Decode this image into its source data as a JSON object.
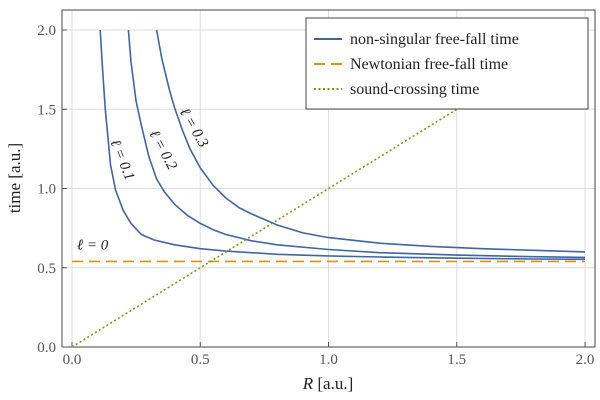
{
  "chart_data": {
    "type": "line",
    "xlabel": "R [a.u.]",
    "xlabel_var": "R",
    "xlabel_unit": " [a.u.]",
    "ylabel": "time [a.u.]",
    "xlim": [
      0.0,
      2.0
    ],
    "ylim": [
      0.0,
      2.0
    ],
    "x_ticks": [
      0.0,
      0.5,
      1.0,
      1.5,
      2.0
    ],
    "x_tick_labels": [
      "0.0",
      "0.5",
      "1.0",
      "1.5",
      "2.0"
    ],
    "y_ticks": [
      0.0,
      0.5,
      1.0,
      1.5,
      2.0
    ],
    "y_tick_labels": [
      "0.0",
      "0.5",
      "1.0",
      "1.5",
      "2.0"
    ],
    "grid": true,
    "legend_position": "top-right",
    "legend": [
      {
        "label": "non-singular free-fall time",
        "style": "solid",
        "color": "#3b67a8"
      },
      {
        "label": "Newtonian free-fall time",
        "style": "dashed",
        "color": "#e0900a"
      },
      {
        "label": "sound-crossing time",
        "style": "dotted",
        "color": "#7a9a12"
      }
    ],
    "series": [
      {
        "label": "ℓ = 0.1",
        "style": "solid",
        "color": "#3b67a8",
        "x": [
          0.11,
          0.12,
          0.13,
          0.15,
          0.17,
          0.2,
          0.23,
          0.27,
          0.32,
          0.4,
          0.5,
          0.6,
          0.8,
          1.0,
          1.2,
          1.5,
          1.8,
          2.0
        ],
        "y": [
          2.0,
          1.73,
          1.5,
          1.15,
          0.99,
          0.86,
          0.78,
          0.71,
          0.675,
          0.645,
          0.62,
          0.605,
          0.585,
          0.575,
          0.568,
          0.56,
          0.555,
          0.553
        ]
      },
      {
        "label": "ℓ = 0.2",
        "style": "solid",
        "color": "#3b67a8",
        "x": [
          0.22,
          0.23,
          0.25,
          0.27,
          0.3,
          0.33,
          0.36,
          0.4,
          0.45,
          0.5,
          0.55,
          0.6,
          0.7,
          0.8,
          1.0,
          1.2,
          1.5,
          1.8,
          2.0
        ],
        "y": [
          2.0,
          1.8,
          1.55,
          1.4,
          1.2,
          1.06,
          0.98,
          0.9,
          0.83,
          0.78,
          0.74,
          0.71,
          0.67,
          0.645,
          0.615,
          0.595,
          0.58,
          0.57,
          0.565
        ]
      },
      {
        "label": "ℓ = 0.3",
        "style": "solid",
        "color": "#3b67a8",
        "x": [
          0.33,
          0.35,
          0.38,
          0.4,
          0.43,
          0.46,
          0.5,
          0.55,
          0.6,
          0.65,
          0.7,
          0.8,
          0.9,
          1.0,
          1.2,
          1.4,
          1.6,
          1.8,
          2.0
        ],
        "y": [
          2.0,
          1.82,
          1.62,
          1.51,
          1.37,
          1.25,
          1.13,
          1.02,
          0.94,
          0.88,
          0.84,
          0.77,
          0.72,
          0.69,
          0.655,
          0.635,
          0.62,
          0.61,
          0.6
        ]
      },
      {
        "label": "Newtonian free-fall time",
        "style": "dashed",
        "color": "#e0900a",
        "x": [
          0.0,
          2.0
        ],
        "y": [
          0.54,
          0.54
        ]
      },
      {
        "label": "sound-crossing time",
        "style": "dotted",
        "color": "#7a9a12",
        "x": [
          0.0,
          1.5
        ],
        "y": [
          0.0,
          1.5
        ]
      }
    ],
    "annotations": [
      {
        "text": "ℓ = 0",
        "x": 0.08,
        "y": 0.615,
        "angle": 0
      },
      {
        "text": "ℓ = 0.1",
        "x": 0.18,
        "y": 1.17,
        "angle": 68
      },
      {
        "text": "ℓ = 0.2",
        "x": 0.34,
        "y": 1.23,
        "angle": 62
      },
      {
        "text": "ℓ = 0.3",
        "x": 0.46,
        "y": 1.37,
        "angle": 60
      }
    ]
  }
}
